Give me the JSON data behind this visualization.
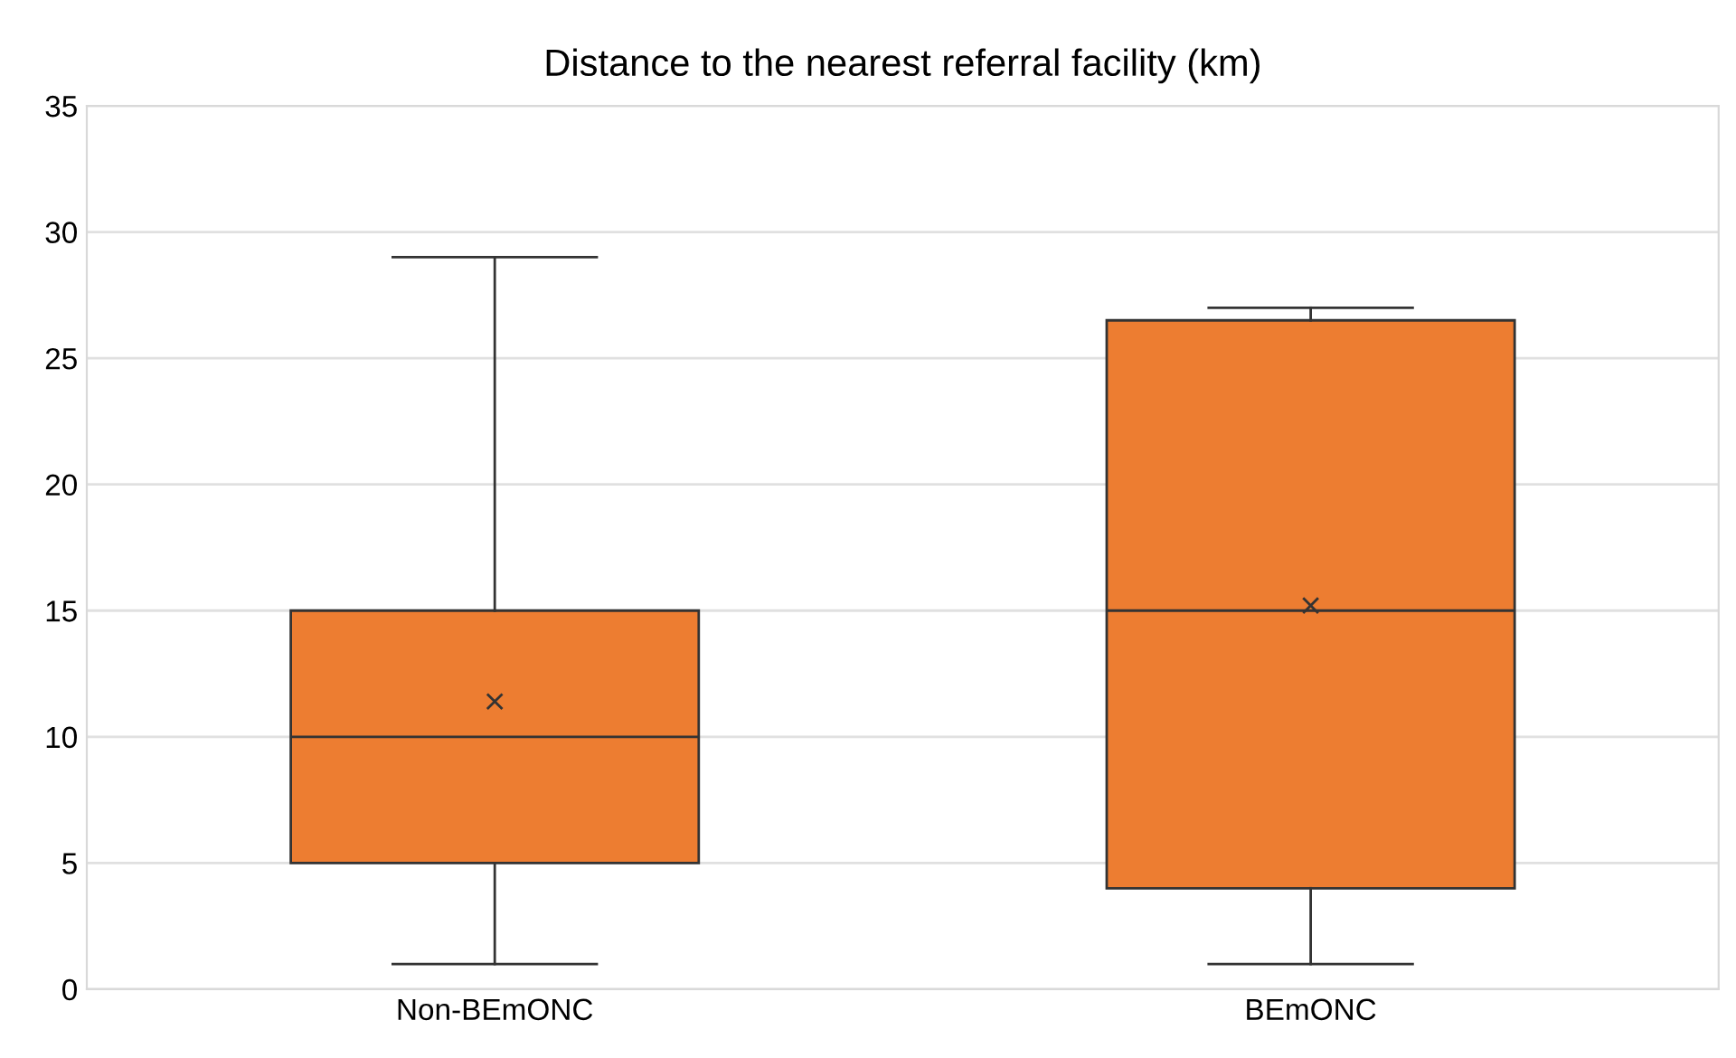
{
  "chart_data": {
    "type": "box",
    "title": "Distance to the nearest referral facility (km)",
    "categories": [
      "Non-BEmONC",
      "BEmONC"
    ],
    "boxes": [
      {
        "low": 1,
        "q1": 5,
        "median": 10,
        "q3": 15,
        "high": 29,
        "mean": 11.4
      },
      {
        "low": 1,
        "q1": 4,
        "median": 15,
        "q3": 26.5,
        "high": 27,
        "mean": 15.2
      }
    ],
    "color": "#ed7d31",
    "ylim": [
      0,
      35
    ],
    "yticks": [
      0,
      5,
      10,
      15,
      20,
      25,
      30,
      35
    ],
    "grid": "y",
    "marker": "cross"
  }
}
